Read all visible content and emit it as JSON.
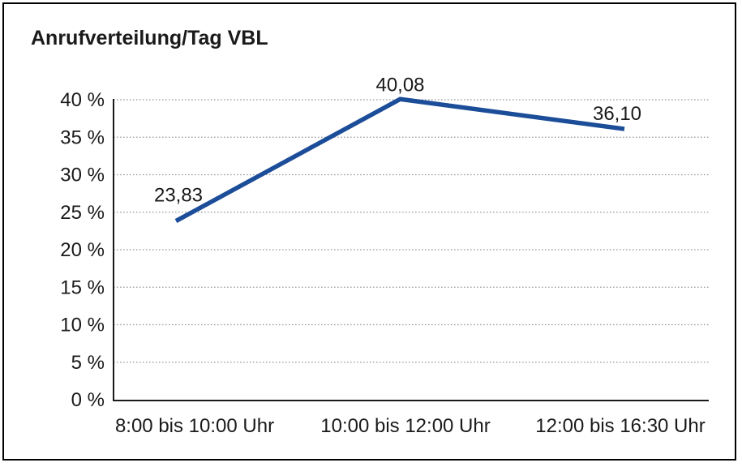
{
  "colors": {
    "line": "#1c4d99",
    "grid": "#999999",
    "axis": "#1a1a1a",
    "text": "#1a1a1a",
    "background": "#ffffff",
    "border": "#000000"
  },
  "chart_data": {
    "type": "line",
    "title": "Anrufverteilung/Tag VBL",
    "categories": [
      "8:00 bis 10:00 Uhr",
      "10:00 bis 12:00 Uhr",
      "12:00 bis 16:30 Uhr"
    ],
    "values": [
      23.83,
      40.08,
      36.1
    ],
    "data_labels": [
      "23,83",
      "40,08",
      "36,10"
    ],
    "xlabel": "",
    "ylabel": "",
    "ylim": [
      0,
      40
    ],
    "ytick_values": [
      0,
      5,
      10,
      15,
      20,
      25,
      30,
      35,
      40
    ],
    "ytick_labels": [
      "0 %",
      "5 %",
      "10 %",
      "15 %",
      "20 %",
      "25 %",
      "30 %",
      "35 %",
      "40 %"
    ],
    "grid": "horizontal-dotted",
    "legend": "none",
    "markers": "none",
    "line_color": "#1c4d99"
  }
}
